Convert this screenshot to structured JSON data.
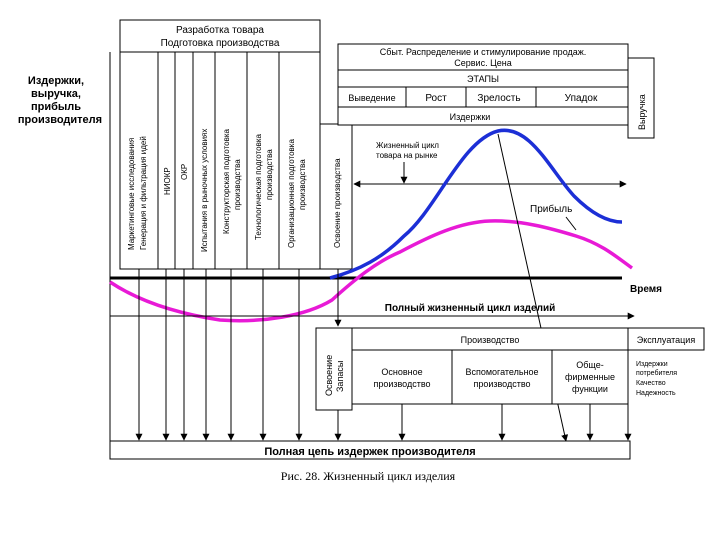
{
  "left_label": [
    "Издержки,",
    "выручка,",
    "прибыль",
    "производителя"
  ],
  "top_box": [
    "Разработка товара",
    "Подготовка производства"
  ],
  "dev_columns": [
    [
      "Маркетинговые исследования",
      "Генерация и фильтрация идей"
    ],
    [
      "НИОКР"
    ],
    [
      "ОКР"
    ],
    [
      "Испытания в рыночных условиях"
    ],
    [
      "Конструкторская подготовка",
      "производства"
    ],
    [
      "Технологическая подготовка",
      "производства"
    ],
    [
      "Организационная подготовка",
      "производства"
    ],
    [
      "Освоение производства"
    ]
  ],
  "sales_box": [
    "Сбыт.  Распределение и стимулирование продаж.",
    "Сервис. Цена"
  ],
  "stages_title": "ЭТАПЫ",
  "stages": [
    "Выведение",
    "Рост",
    "Зрелость",
    "Упадок"
  ],
  "costs_label": "Издержки",
  "revenue_label": "Выручка",
  "lifecycle_note": [
    "Жизненный цикл",
    "товара на рынке"
  ],
  "profit_label": "Прибыль",
  "time_label": "Время",
  "full_cycle_label": "Полный жизненный цикл изделий",
  "mastering_label": [
    "Освоение",
    "Запасы"
  ],
  "production_label": "Производство",
  "production_parts": [
    [
      "Основное",
      "производство"
    ],
    [
      "Вспомогательное",
      "производство"
    ],
    [
      "Обще-",
      "фирменные",
      "функции"
    ]
  ],
  "exploitation_label": "Эксплуатация",
  "exploitation_items": [
    "Издержки",
    "потребителя",
    "Качество",
    "Надежность"
  ],
  "bottom_box": "Полная цепь издержек производителя",
  "caption": "Рис. 28. Жизненный цикл изделия",
  "colors": {
    "revenue_curve": "#1c2fd6",
    "profit_curve": "#e81ad6"
  }
}
